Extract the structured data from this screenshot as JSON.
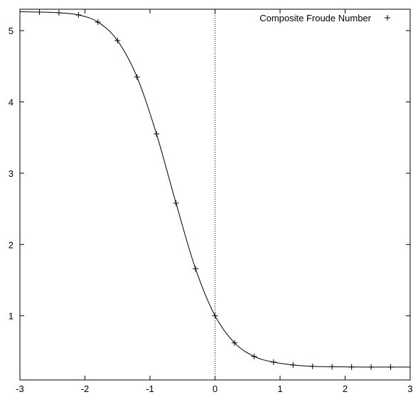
{
  "chart_data": {
    "type": "line",
    "title": "",
    "xlabel": "",
    "ylabel": "",
    "xlim": [
      -3,
      3
    ],
    "ylim": [
      0.1,
      5.3
    ],
    "grid": false,
    "legend_position": "top-right",
    "x_ticks": [
      -3,
      -2,
      -1,
      0,
      1,
      2,
      3
    ],
    "x_tick_labels": [
      "-3",
      "-2",
      "-1",
      "0",
      "1",
      "2",
      "3"
    ],
    "y_ticks": [
      1,
      2,
      3,
      4,
      5
    ],
    "y_tick_labels": [
      "1",
      "2",
      "3",
      "4",
      "5"
    ],
    "reference_line": {
      "axis": "x",
      "value": 0,
      "style": "dotted"
    },
    "series": [
      {
        "name": "Composite Froude Number",
        "render": "curve-with-markers",
        "marker": "+",
        "color": "#000000",
        "x": [
          -2.7,
          -2.4,
          -2.1,
          -1.8,
          -1.5,
          -1.2,
          -0.9,
          -0.6,
          -0.3,
          0.0,
          0.3,
          0.6,
          0.9,
          1.2,
          1.5,
          1.8,
          2.1,
          2.4,
          2.7
        ],
        "y": [
          5.26,
          5.25,
          5.22,
          5.12,
          4.86,
          4.35,
          3.55,
          2.58,
          1.66,
          1.0,
          0.62,
          0.43,
          0.35,
          0.31,
          0.29,
          0.285,
          0.282,
          0.28,
          0.28
        ]
      }
    ]
  }
}
